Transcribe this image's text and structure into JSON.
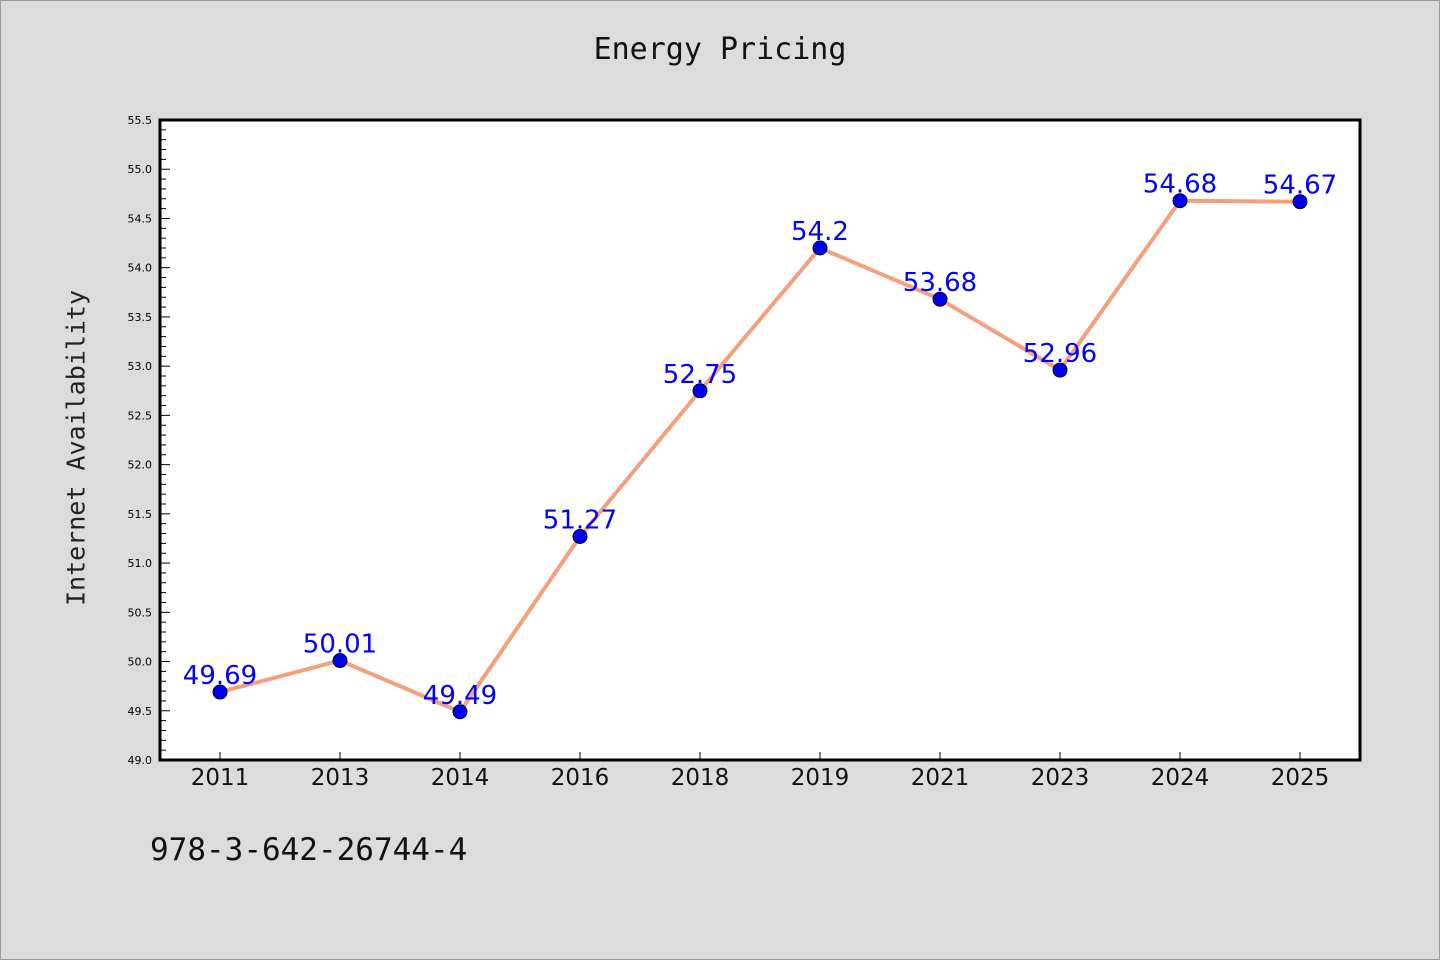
{
  "chart_data": {
    "type": "line",
    "title": "Energy Pricing",
    "xlabel": "",
    "ylabel": "Internet Availability",
    "categories": [
      "2011",
      "2013",
      "2014",
      "2016",
      "2018",
      "2019",
      "2021",
      "2023",
      "2024",
      "2025"
    ],
    "series": [
      {
        "values": [
          49.69,
          50.01,
          49.49,
          51.27,
          52.75,
          54.2,
          53.68,
          52.96,
          54.68,
          54.67
        ],
        "labels": [
          "49.69",
          "50.01",
          "49.49",
          "51.27",
          "52.75",
          "54.2",
          "53.68",
          "52.96",
          "54.68",
          "54.67"
        ],
        "line_color": "#f4a07c",
        "marker_color": "#0000ee"
      }
    ],
    "ylim": [
      49.0,
      55.5
    ],
    "yticks": [
      "49.0",
      "49.5",
      "50.0",
      "50.5",
      "51.0",
      "51.5",
      "52.0",
      "52.5",
      "53.0",
      "53.5",
      "54.0",
      "54.5",
      "55.0",
      "55.5"
    ],
    "grid": false,
    "label_color": "#0000ff"
  },
  "footer": {
    "isbn": "978-3-642-26744-4"
  }
}
